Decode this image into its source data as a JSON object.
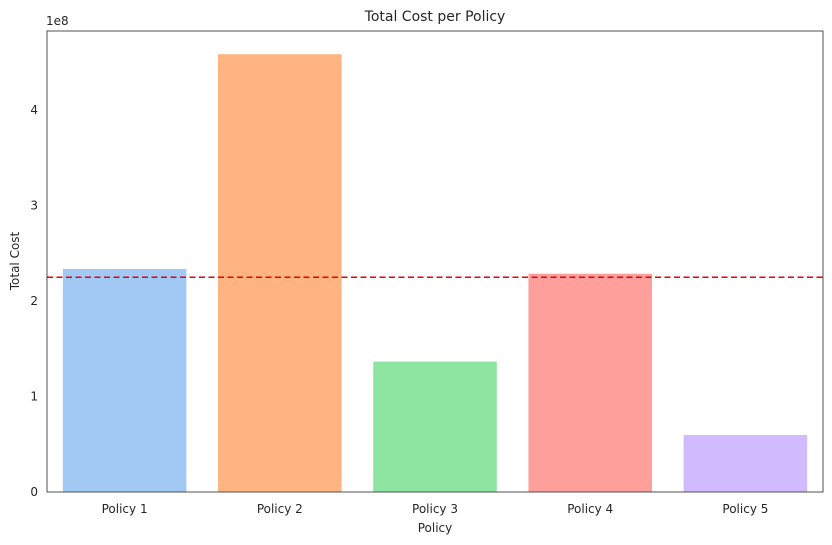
{
  "chart_data": {
    "type": "bar",
    "title": "Total Cost per Policy",
    "xlabel": "Policy",
    "ylabel": "Total Cost",
    "y_offset_label": "1e8",
    "categories": [
      "Policy 1",
      "Policy 2",
      "Policy 3",
      "Policy 4",
      "Policy 5"
    ],
    "values": [
      234000000,
      459000000,
      137000000,
      229000000,
      60000000
    ],
    "colors": [
      "#a1c9f4",
      "#ffb482",
      "#8de5a1",
      "#ff9f9b",
      "#d0bbff"
    ],
    "ylim": [
      0,
      483000000
    ],
    "yticks": [
      0,
      100000000,
      200000000,
      300000000,
      400000000
    ],
    "ytick_labels": [
      "0",
      "1",
      "2",
      "3",
      "4"
    ],
    "reference_line": {
      "value": 225000000,
      "color": "#e8000b",
      "style": "dashed"
    },
    "grid": false
  }
}
